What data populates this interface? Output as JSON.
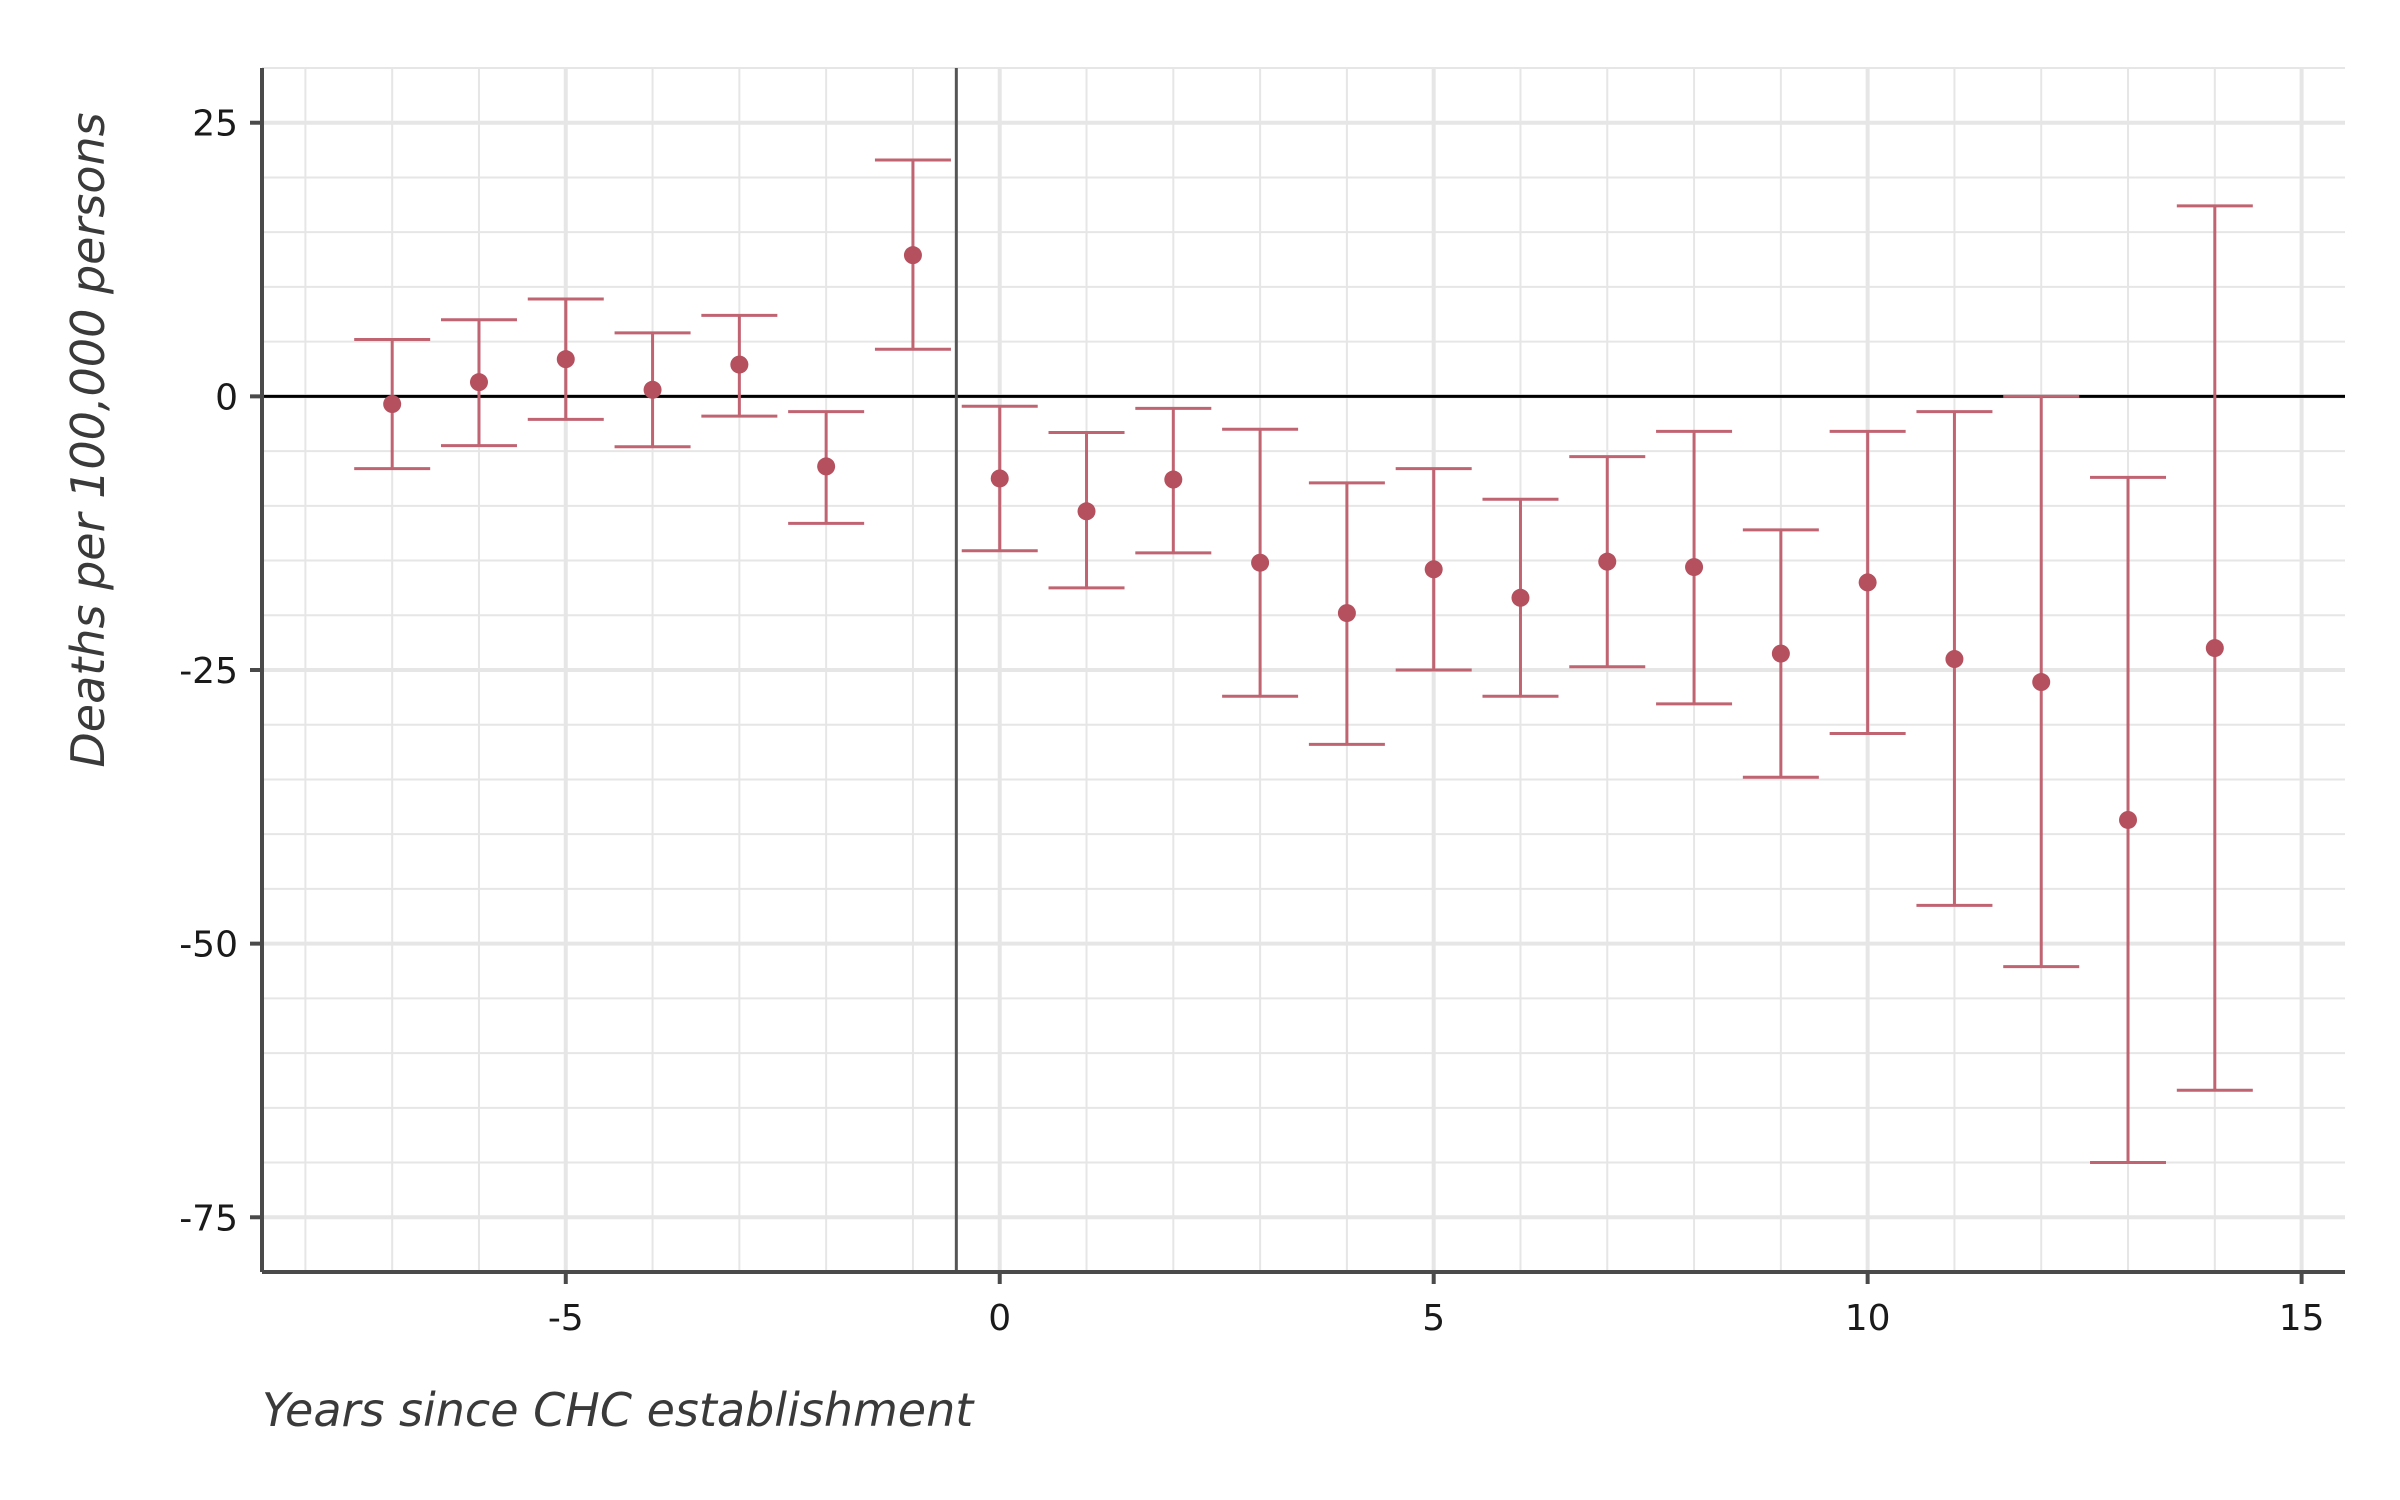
{
  "chart_data": {
    "type": "scatter",
    "subtype": "event-study point estimates with 95% confidence intervals",
    "xlabel": "Years since CHC establishment",
    "ylabel": "Deaths per 100,000 persons",
    "xlim": [
      -8.5,
      15.5
    ],
    "ylim": [
      -80,
      30
    ],
    "x_ticks": [
      -5,
      0,
      5,
      10,
      15
    ],
    "y_ticks": [
      -75,
      -50,
      -25,
      0,
      25
    ],
    "x_tick_labels": [
      "-5",
      "0",
      "5",
      "10",
      "15"
    ],
    "y_tick_labels": [
      "-75",
      "-50",
      "-25",
      "0",
      "25"
    ],
    "grid": true,
    "reference_hline_y": 0,
    "reference_vline_x": -0.5,
    "colors": {
      "points": "#b5505e",
      "errorbars": "#c06472",
      "zero_line": "#000000",
      "event_line": "#555555",
      "grid": "#e6e6e6"
    },
    "series": [
      {
        "points": [
          {
            "x": -7,
            "y": -0.7,
            "lo": -6.6,
            "hi": 5.2
          },
          {
            "x": -6,
            "y": 1.3,
            "lo": -4.5,
            "hi": 7.0
          },
          {
            "x": -5,
            "y": 3.4,
            "lo": -2.1,
            "hi": 8.9
          },
          {
            "x": -4,
            "y": 0.6,
            "lo": -4.6,
            "hi": 5.8
          },
          {
            "x": -3,
            "y": 2.9,
            "lo": -1.8,
            "hi": 7.4
          },
          {
            "x": -2,
            "y": -6.4,
            "lo": -11.6,
            "hi": -1.4
          },
          {
            "x": -1,
            "y": 12.9,
            "lo": 4.3,
            "hi": 21.6
          },
          {
            "x": 0,
            "y": -7.5,
            "lo": -14.1,
            "hi": -0.9
          },
          {
            "x": 1,
            "y": -10.5,
            "lo": -17.5,
            "hi": -3.3
          },
          {
            "x": 2,
            "y": -7.6,
            "lo": -14.3,
            "hi": -1.1
          },
          {
            "x": 3,
            "y": -15.2,
            "lo": -27.4,
            "hi": -3.0
          },
          {
            "x": 4,
            "y": -19.8,
            "lo": -31.8,
            "hi": -7.9
          },
          {
            "x": 5,
            "y": -15.8,
            "lo": -25.0,
            "hi": -6.6
          },
          {
            "x": 6,
            "y": -18.4,
            "lo": -27.4,
            "hi": -9.4
          },
          {
            "x": 7,
            "y": -15.1,
            "lo": -24.7,
            "hi": -5.5
          },
          {
            "x": 8,
            "y": -15.6,
            "lo": -28.1,
            "hi": -3.2
          },
          {
            "x": 9,
            "y": -23.5,
            "lo": -34.8,
            "hi": -12.2
          },
          {
            "x": 10,
            "y": -17.0,
            "lo": -30.8,
            "hi": -3.2
          },
          {
            "x": 11,
            "y": -24.0,
            "lo": -46.5,
            "hi": -1.4
          },
          {
            "x": 12,
            "y": -26.1,
            "lo": -52.1,
            "hi": 0.0
          },
          {
            "x": 13,
            "y": -38.7,
            "lo": -70.0,
            "hi": -7.4
          },
          {
            "x": 14,
            "y": -23.0,
            "lo": -63.4,
            "hi": 17.4
          }
        ]
      }
    ]
  }
}
